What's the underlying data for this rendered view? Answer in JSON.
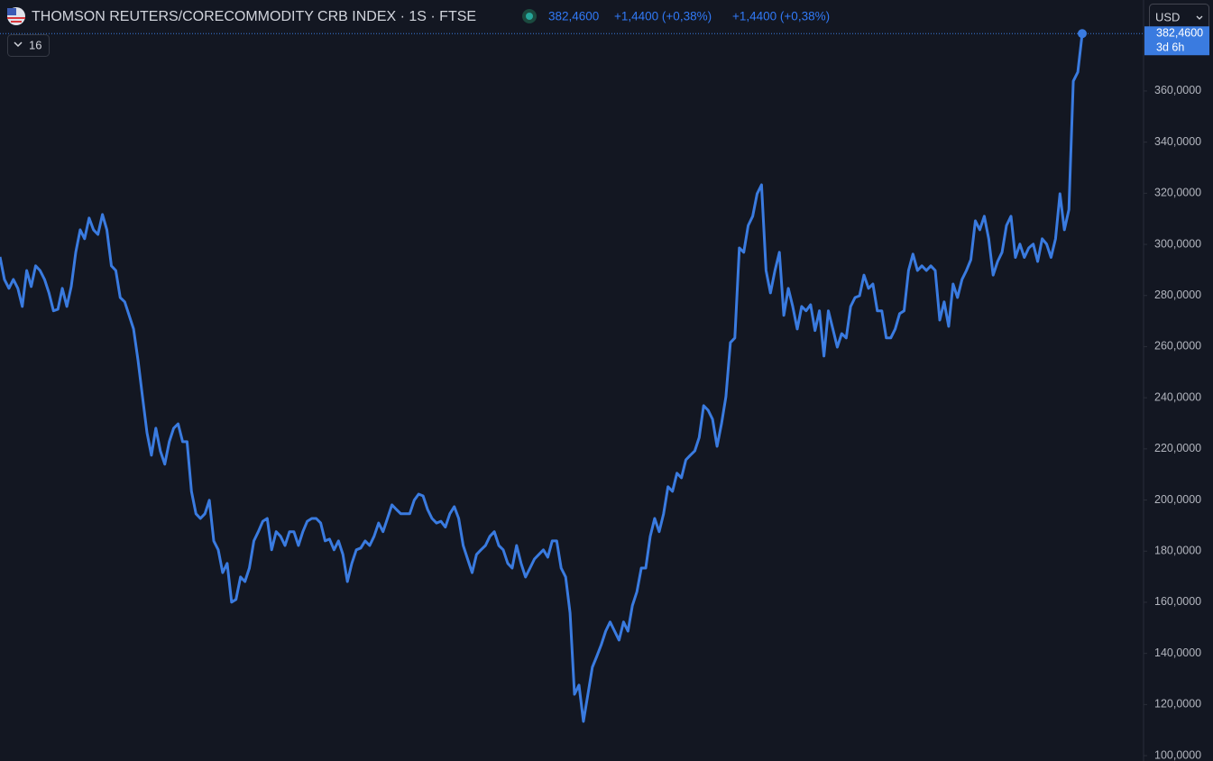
{
  "chart_data": {
    "type": "line",
    "title": "THOMSON REUTERS/CORECOMMODITY CRB INDEX · 1S · FTSE",
    "last_price": "382,4600",
    "change": "+1,4400 (+0,38%)",
    "change_2": "+1,4400 (+0,38%)",
    "currency": "USD",
    "indicator_count": "16",
    "countdown": "3d 6h",
    "color": "#3a7be0",
    "ylim": [
      97.9,
      395.6
    ],
    "yticks": [
      {
        "value": 100,
        "label": "100,0000"
      },
      {
        "value": 120,
        "label": "120,0000"
      },
      {
        "value": 140,
        "label": "140,0000"
      },
      {
        "value": 160,
        "label": "160,0000"
      },
      {
        "value": 180,
        "label": "180,0000"
      },
      {
        "value": 200,
        "label": "200,0000"
      },
      {
        "value": 220,
        "label": "220,0000"
      },
      {
        "value": 240,
        "label": "240,0000"
      },
      {
        "value": 260,
        "label": "260,0000"
      },
      {
        "value": 280,
        "label": "280,0000"
      },
      {
        "value": 300,
        "label": "300,0000"
      },
      {
        "value": 320,
        "label": "320,0000"
      },
      {
        "value": 340,
        "label": "340,0000"
      },
      {
        "value": 360,
        "label": "360,0000"
      }
    ],
    "grid": false,
    "values": [
      295.1,
      286.3,
      282.8,
      286.3,
      282.8,
      275.7,
      289.8,
      283.5,
      291.6,
      289.8,
      286.3,
      281,
      274,
      274.6,
      282.8,
      275.7,
      283.5,
      296.9,
      305.7,
      302.2,
      310.3,
      305.7,
      303.9,
      311.7,
      305.7,
      291.6,
      289.8,
      279.2,
      277.5,
      272.2,
      266.9,
      254.5,
      240.4,
      226.3,
      217.5,
      228.1,
      219.2,
      214,
      222.8,
      228.1,
      229.8,
      222.8,
      222.8,
      203.4,
      194.6,
      192.8,
      194.6,
      199.9,
      184,
      180.5,
      171.6,
      175.2,
      160,
      161.1,
      169.9,
      168.1,
      173.4,
      184,
      187.6,
      191.7,
      192.8,
      180.5,
      187.6,
      185.8,
      182.2,
      187.6,
      187.6,
      182.2,
      187.6,
      191.7,
      192.8,
      192.8,
      191,
      184,
      184.7,
      180.5,
      184,
      178.7,
      168.1,
      175.2,
      180.5,
      181.2,
      184,
      182.2,
      185.8,
      191,
      187.6,
      192.8,
      198.1,
      196.3,
      194.6,
      194.6,
      194.6,
      199.9,
      202.3,
      201.6,
      196.3,
      192.8,
      191,
      191.7,
      189.4,
      194.6,
      197.4,
      192.8,
      182.2,
      176.9,
      171.6,
      178.7,
      180.5,
      182.2,
      185.8,
      187.6,
      182.2,
      180.5,
      175.2,
      173.4,
      182.2,
      175.2,
      169.9,
      173.4,
      176.9,
      178.7,
      180.5,
      177.6,
      184,
      184,
      173.4,
      169.9,
      155.8,
      124,
      127.6,
      113.4,
      124,
      134.6,
      138.8,
      143.4,
      148.7,
      152.3,
      148.7,
      145.2,
      152.3,
      148.7,
      158.7,
      164.1,
      173.4,
      173.4,
      185.8,
      192.8,
      187.6,
      194.6,
      205.2,
      203.4,
      210.5,
      208.7,
      215.7,
      217.5,
      219.2,
      224.5,
      236.9,
      235.1,
      231.6,
      221,
      229.8,
      240.4,
      261.6,
      263.4,
      298.6,
      296.9,
      307.4,
      311,
      319.8,
      323.3,
      289.8,
      281,
      289.8,
      296.9,
      272.2,
      282.8,
      275.7,
      266.9,
      275.7,
      274,
      276.4,
      266.3,
      274,
      256.3,
      274,
      266.9,
      259.8,
      265.1,
      263.4,
      275.7,
      279.2,
      279.9,
      288,
      282.8,
      284.5,
      274,
      274,
      263.4,
      263.4,
      266.9,
      272.9,
      274,
      289.8,
      296.2,
      289.8,
      291.6,
      289.8,
      291.6,
      289.8,
      270.4,
      277.5,
      267.9,
      284.5,
      279.2,
      286.3,
      289.8,
      294,
      309.2,
      305.7,
      311,
      302.2,
      288,
      293.3,
      296.9,
      307.4,
      311,
      294.9,
      300.1,
      294.9,
      298.6,
      300.1,
      293.3,
      302.2,
      300.1,
      294.9,
      302.2,
      319.8,
      305.7,
      313.6,
      363.9,
      367.4,
      382.46
    ]
  }
}
